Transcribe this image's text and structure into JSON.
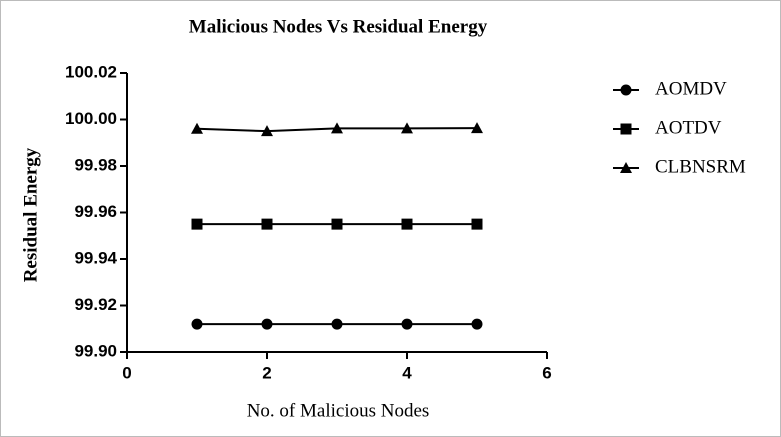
{
  "chart_data": {
    "type": "line",
    "title": "Malicious Nodes Vs Residual Energy",
    "x_label": "No. of Malicious Nodes",
    "y_label": "Residual Energy",
    "x": [
      1,
      2,
      3,
      4,
      5
    ],
    "series": [
      {
        "name": "AOMDV",
        "color": "#000000",
        "marker": "circle",
        "values": [
          99.912,
          99.912,
          99.912,
          99.912,
          99.912
        ]
      },
      {
        "name": "AOTDV",
        "color": "#000000",
        "marker": "square",
        "values": [
          99.955,
          99.955,
          99.955,
          99.955,
          99.955
        ]
      },
      {
        "name": "CLBNSRM",
        "color": "#000000",
        "marker": "triangle",
        "values": [
          99.996,
          99.995,
          99.9962,
          99.9962,
          99.9963
        ]
      }
    ],
    "xlim": [
      0,
      6
    ],
    "xticks": [
      0,
      2,
      4,
      6
    ],
    "ylim": [
      99.9,
      100.02
    ],
    "yticks": [
      {
        "value": 99.9,
        "label": "99.90"
      },
      99.92,
      99.94,
      99.96,
      99.98,
      {
        "value": 100.0,
        "label": "100.00"
      },
      100.02
    ],
    "legend": "right"
  }
}
